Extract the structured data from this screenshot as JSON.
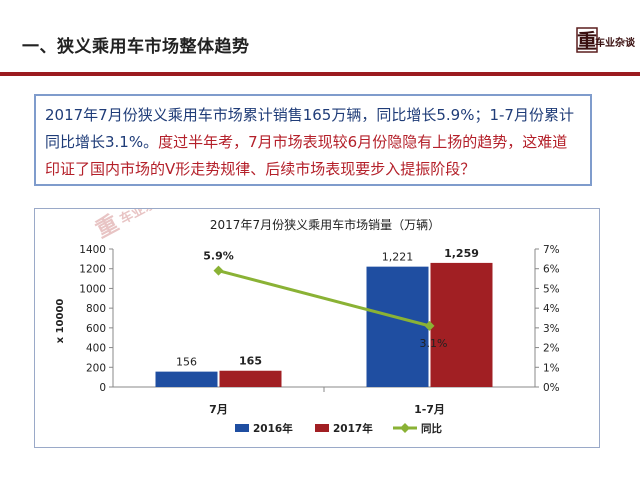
{
  "header": {
    "title": "一、狭义乘用车市场整体趋势",
    "logo_text": "车业杂谈",
    "logo_mark": "重"
  },
  "summary": {
    "part1": "2017年7月份狭义乘用车市场累计销售165万辆，同比增长5.9%；1-7月份累计同比增长3.1%。",
    "part2": "度过半年考，7月市场表现较6月份隐隐有上扬的趋势，这难道印证了国内市场的V形走势规律、后续市场表现要步入提振阶段？"
  },
  "watermark": {
    "mark": "重",
    "text": "车业杂谈"
  },
  "chart_data": {
    "type": "bar",
    "title": "2017年7月份狭义乘用车市场销量（万辆）",
    "ylabel": "x 10000",
    "xlabel": "",
    "categories": [
      "7月",
      "1-7月"
    ],
    "ylim": [
      0,
      1400
    ],
    "yticks": [
      "0",
      "200",
      "400",
      "600",
      "800",
      "1000",
      "1200",
      "1400"
    ],
    "y2lim": [
      0,
      7
    ],
    "y2ticks": [
      "0%",
      "1%",
      "2%",
      "3%",
      "4%",
      "5%",
      "6%",
      "7%"
    ],
    "series": [
      {
        "name": "2016年",
        "type": "bar",
        "color": "#1f4ea1",
        "values": [
          156,
          1221
        ],
        "labels": [
          "156",
          "1,221"
        ]
      },
      {
        "name": "2017年",
        "type": "bar",
        "color": "#a11f23",
        "values": [
          165,
          1259
        ],
        "labels": [
          "165",
          "1,259"
        ]
      },
      {
        "name": "同比",
        "type": "line",
        "color": "#8ab235",
        "axis": "right",
        "values": [
          5.9,
          3.1
        ],
        "labels": [
          "5.9%",
          "3.1%"
        ]
      }
    ],
    "legend_position": "bottom",
    "grid": false
  }
}
